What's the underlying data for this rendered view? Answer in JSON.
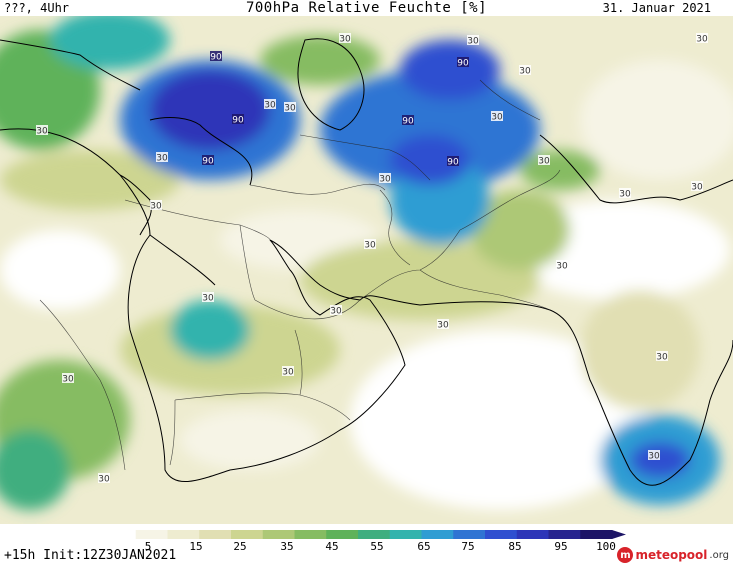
{
  "header": {
    "left": "???, 4Uhr",
    "title": "700hPa Relative Feuchte [%]",
    "date": "31. Januar 2021"
  },
  "footer": {
    "run_info": "+15h Init:12Z30JAN2021",
    "brand_primary": "meteopool",
    "brand_suffix": ".org"
  },
  "legend": {
    "ticks": [
      "5",
      "15",
      "25",
      "35",
      "45",
      "55",
      "65",
      "75",
      "85",
      "95",
      "100"
    ],
    "colors": [
      "#ffffff",
      "#f6f4e6",
      "#eeecd0",
      "#e1dfb3",
      "#cdd591",
      "#adc876",
      "#86bc62",
      "#5fb25a",
      "#3fae7f",
      "#33b3ad",
      "#2f9dd3",
      "#2f74d3",
      "#2f4fd0",
      "#2d35b8",
      "#27248f",
      "#1c1466"
    ]
  },
  "contour_labels": [
    {
      "text": "90"
    },
    {
      "text": "90"
    },
    {
      "text": "90"
    },
    {
      "text": "90"
    },
    {
      "text": "90"
    },
    {
      "text": "90"
    },
    {
      "text": "30"
    },
    {
      "text": "30"
    },
    {
      "text": "30"
    },
    {
      "text": "30"
    },
    {
      "text": "30"
    },
    {
      "text": "30"
    },
    {
      "text": "30"
    },
    {
      "text": "30"
    },
    {
      "text": "30"
    },
    {
      "text": "30"
    },
    {
      "text": "30"
    },
    {
      "text": "30"
    },
    {
      "text": "30"
    },
    {
      "text": "30"
    },
    {
      "text": "30"
    },
    {
      "text": "30"
    },
    {
      "text": "30"
    },
    {
      "text": "30"
    },
    {
      "text": "30"
    },
    {
      "text": "30"
    },
    {
      "text": "30"
    },
    {
      "text": "30"
    },
    {
      "text": "30"
    },
    {
      "text": "30"
    }
  ]
}
